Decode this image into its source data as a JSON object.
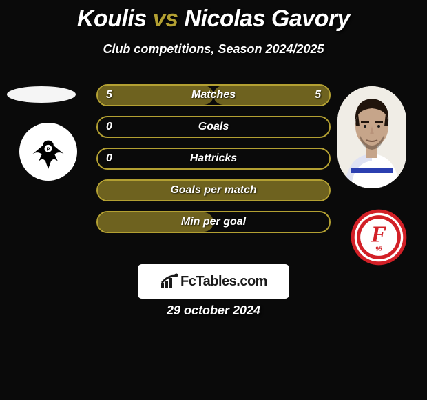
{
  "background_color": "#0a0a0a",
  "title": {
    "left_name": "Koulis",
    "vs": "vs",
    "right_name": "Nicolas Gavory",
    "left_color": "#ffffff",
    "vs_color": "#b3a032",
    "right_color": "#ffffff",
    "fontsize": 34
  },
  "subtitle": "Club competitions, Season 2024/2025",
  "stats": {
    "pill_border_color": "#b3a032",
    "pill_fill_color": "#6e621f",
    "label_color": "#ffffff",
    "value_color": "#ffffff",
    "rows": [
      {
        "label": "Matches",
        "left": "5",
        "right": "5",
        "fill_left_pct": 50,
        "fill_right_pct": 50
      },
      {
        "label": "Goals",
        "left": "0",
        "right": "",
        "fill_left_pct": 0,
        "fill_right_pct": 0
      },
      {
        "label": "Hattricks",
        "left": "0",
        "right": "",
        "fill_left_pct": 0,
        "fill_right_pct": 0
      },
      {
        "label": "Goals per match",
        "left": "",
        "right": "",
        "fill_left_pct": 100,
        "fill_right_pct": 0
      },
      {
        "label": "Min per goal",
        "left": "",
        "right": "",
        "fill_left_pct": 50,
        "fill_right_pct": 0
      }
    ]
  },
  "left_club": {
    "name": "preussen-munster-badge",
    "outer_color": "#000000",
    "inner_color": "#ffffff"
  },
  "right_club": {
    "name": "fortuna-dusseldorf-badge",
    "ring_color": "#d22027",
    "inner_color": "#ffffff",
    "letter": "F",
    "letter_color": "#d22027",
    "sub_text": "95"
  },
  "right_avatar": {
    "skin_color": "#c6a58a",
    "hair_color": "#20140c",
    "kit_color": "#ffffff",
    "kit_accent": "#2b3fb0",
    "bg_color": "#f0ede6"
  },
  "watermark": {
    "text": "FcTables.com",
    "icon_color": "#1a1a1a",
    "text_color": "#1a1a1a",
    "bg_color": "#ffffff"
  },
  "date": "29 october 2024"
}
